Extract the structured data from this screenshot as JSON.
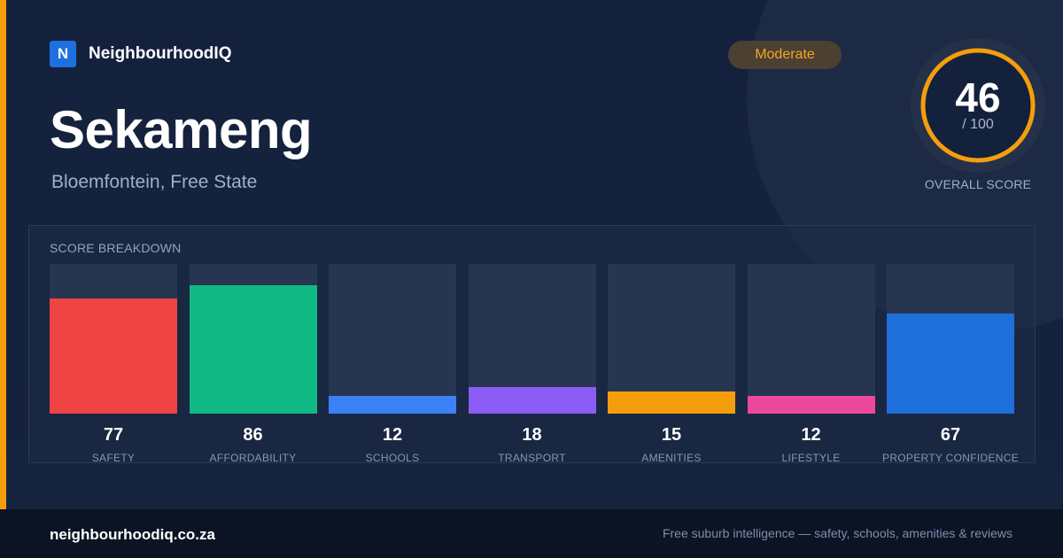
{
  "brand": {
    "logo_letter": "N",
    "name": "NeighbourhoodIQ"
  },
  "suburb": {
    "name": "Sekameng",
    "location": "Bloemfontein, Free State"
  },
  "badge": {
    "label": "Moderate",
    "color": "#f5a524"
  },
  "overall": {
    "score": "46",
    "max": "/ 100",
    "label": "OVERALL SCORE",
    "fraction": 0.46,
    "ring_color": "#f59e0b"
  },
  "breakdown": {
    "title": "SCORE BREAKDOWN",
    "items": [
      {
        "value": "77",
        "label": "SAFETY",
        "score": 77,
        "color": "#ef4444"
      },
      {
        "value": "86",
        "label": "AFFORDABILITY",
        "score": 86,
        "color": "#10b981"
      },
      {
        "value": "12",
        "label": "SCHOOLS",
        "score": 12,
        "color": "#3b82f6"
      },
      {
        "value": "18",
        "label": "TRANSPORT",
        "score": 18,
        "color": "#8b5cf6"
      },
      {
        "value": "15",
        "label": "AMENITIES",
        "score": 15,
        "color": "#f59e0b"
      },
      {
        "value": "12",
        "label": "LIFESTYLE",
        "score": 12,
        "color": "#ec4899"
      },
      {
        "value": "67",
        "label": "PROPERTY CONFIDENCE",
        "score": 67,
        "color": "#1e6fd9"
      }
    ]
  },
  "footer": {
    "url": "neighbourhoodiq.co.za",
    "tagline": "Free suburb intelligence — safety, schools, amenities & reviews"
  }
}
